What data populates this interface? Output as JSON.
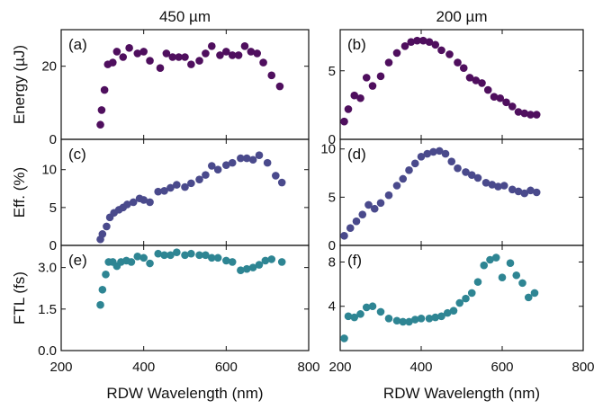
{
  "figure": {
    "col_titles": [
      "450 µm",
      "200 µm"
    ],
    "xlabel": "RDW Wavelength (nm)"
  },
  "colors": {
    "energy": "#4f0f5e",
    "efficiency": "#4a4a8c",
    "ftl": "#2e8593"
  },
  "chart_data": [
    {
      "type": "scatter",
      "panel": "(a)",
      "row": 0,
      "col": 0,
      "ylabel": "Energy (µJ)",
      "xlim": [
        200,
        800
      ],
      "ylim": [
        0,
        30
      ],
      "xticks": [
        200,
        400,
        600,
        800
      ],
      "yticks": [
        0,
        20
      ],
      "color": "energy",
      "x": [
        295,
        298,
        305,
        313,
        325,
        335,
        350,
        365,
        385,
        400,
        415,
        440,
        455,
        470,
        485,
        500,
        515,
        535,
        550,
        565,
        585,
        600,
        615,
        630,
        645,
        660,
        675,
        690,
        710,
        730
      ],
      "y": [
        4,
        8,
        13.5,
        20.5,
        21,
        24,
        22.5,
        25,
        23.5,
        24,
        21.5,
        19.5,
        23.5,
        22.5,
        22.5,
        22.5,
        20.5,
        21.5,
        23.5,
        25.5,
        23,
        24,
        23,
        23,
        25.5,
        24,
        23.5,
        21,
        17.5,
        14.5
      ]
    },
    {
      "type": "scatter",
      "panel": "(b)",
      "row": 0,
      "col": 1,
      "ylabel": "",
      "xlim": [
        200,
        800
      ],
      "ylim": [
        0,
        8
      ],
      "xticks": [
        200,
        400,
        600,
        800
      ],
      "yticks": [
        0,
        5
      ],
      "color": "energy",
      "x": [
        210,
        220,
        235,
        250,
        265,
        280,
        300,
        320,
        340,
        360,
        375,
        390,
        405,
        420,
        435,
        450,
        470,
        490,
        505,
        520,
        535,
        550,
        565,
        580,
        595,
        610,
        625,
        640,
        655,
        670,
        685
      ],
      "y": [
        1.3,
        2.2,
        3.2,
        3,
        4.5,
        3.9,
        4.6,
        5.6,
        6.3,
        6.8,
        7.1,
        7.2,
        7.2,
        7.1,
        6.9,
        6.5,
        6.2,
        5.6,
        5.2,
        4.5,
        4.3,
        4.1,
        3.6,
        3.1,
        3,
        2.7,
        2.4,
        2,
        1.9,
        1.8,
        1.8
      ]
    },
    {
      "type": "scatter",
      "panel": "(c)",
      "row": 1,
      "col": 0,
      "ylabel": "Eff. (%)",
      "xlim": [
        200,
        800
      ],
      "ylim": [
        0,
        14
      ],
      "xticks": [
        200,
        400,
        600,
        800
      ],
      "yticks": [
        0,
        5,
        10
      ],
      "color": "efficiency",
      "x": [
        295,
        300,
        310,
        318,
        328,
        340,
        350,
        360,
        375,
        390,
        400,
        415,
        435,
        450,
        465,
        480,
        500,
        515,
        535,
        550,
        565,
        580,
        600,
        615,
        635,
        650,
        665,
        680,
        700,
        720,
        735
      ],
      "y": [
        0.8,
        1.5,
        2.5,
        3.7,
        4.3,
        4.7,
        5,
        5.4,
        5.7,
        6.2,
        6,
        5.7,
        7.1,
        7.2,
        7.6,
        8,
        7.7,
        8.2,
        8.7,
        9.3,
        10.5,
        10,
        10.6,
        10.9,
        11.5,
        11.5,
        11.3,
        11.9,
        10.9,
        9.2,
        8.3
      ]
    },
    {
      "type": "scatter",
      "panel": "(d)",
      "row": 1,
      "col": 1,
      "ylabel": "",
      "xlim": [
        200,
        800
      ],
      "ylim": [
        0,
        11
      ],
      "xticks": [
        200,
        400,
        600,
        800
      ],
      "yticks": [
        0,
        5,
        10
      ],
      "color": "efficiency",
      "x": [
        210,
        225,
        240,
        255,
        270,
        285,
        300,
        320,
        340,
        355,
        370,
        385,
        400,
        415,
        430,
        445,
        460,
        475,
        490,
        510,
        525,
        540,
        560,
        575,
        590,
        605,
        625,
        640,
        655,
        670,
        685
      ],
      "y": [
        1,
        1.8,
        2.5,
        3.2,
        4.2,
        3.8,
        4.4,
        5.2,
        6.2,
        6.9,
        7.8,
        8.5,
        9.2,
        9.5,
        9.7,
        9.8,
        9.5,
        8.7,
        8,
        7.6,
        7.3,
        7,
        6.5,
        6.3,
        6.1,
        6.2,
        5.8,
        5.6,
        5.4,
        5.7,
        5.5
      ]
    },
    {
      "type": "scatter",
      "panel": "(e)",
      "row": 2,
      "col": 0,
      "ylabel": "FTL (fs)",
      "xlim": [
        200,
        800
      ],
      "ylim": [
        0,
        3.8
      ],
      "xticks": [
        200,
        400,
        600,
        800
      ],
      "yticks": [
        0,
        1.5,
        3
      ],
      "color": "ftl",
      "xticklabels": [
        "200",
        "400",
        "600",
        "800"
      ],
      "yticklabels": [
        "0.0",
        "1.5",
        "3.0"
      ],
      "x": [
        295,
        300,
        308,
        315,
        325,
        335,
        345,
        358,
        370,
        385,
        400,
        415,
        435,
        450,
        465,
        480,
        500,
        515,
        535,
        550,
        565,
        580,
        600,
        615,
        635,
        650,
        665,
        680,
        695,
        710,
        735
      ],
      "y": [
        1.65,
        2.2,
        2.75,
        3.2,
        3.2,
        3.05,
        3.2,
        3.25,
        3.2,
        3.4,
        3.35,
        3.15,
        3.5,
        3.45,
        3.45,
        3.55,
        3.45,
        3.5,
        3.45,
        3.45,
        3.35,
        3.35,
        3.25,
        3.2,
        2.9,
        2.95,
        3,
        3.1,
        3.25,
        3.3,
        3.2
      ]
    },
    {
      "type": "scatter",
      "panel": "(f)",
      "row": 2,
      "col": 1,
      "ylabel": "",
      "xlim": [
        200,
        800
      ],
      "ylim": [
        0,
        9.5
      ],
      "xticks": [
        200,
        400,
        600,
        800
      ],
      "yticks": [
        4,
        8
      ],
      "color": "ftl",
      "xticklabels": [
        "200",
        "400",
        "600",
        "800"
      ],
      "yticklabels": [
        "4",
        "8"
      ],
      "x": [
        210,
        220,
        235,
        250,
        265,
        280,
        300,
        320,
        340,
        355,
        370,
        385,
        400,
        420,
        435,
        450,
        465,
        480,
        495,
        510,
        525,
        540,
        555,
        570,
        585,
        600,
        620,
        635,
        650,
        665,
        680
      ],
      "y": [
        1.1,
        3.1,
        3,
        3.3,
        3.9,
        4,
        3.5,
        2.9,
        2.7,
        2.6,
        2.6,
        2.8,
        2.9,
        2.9,
        3,
        3.1,
        3.4,
        3.6,
        4.3,
        4.7,
        5.2,
        6.2,
        7.7,
        8.2,
        8.4,
        6.6,
        7.9,
        6.8,
        6.1,
        4.8,
        5.2
      ]
    }
  ]
}
